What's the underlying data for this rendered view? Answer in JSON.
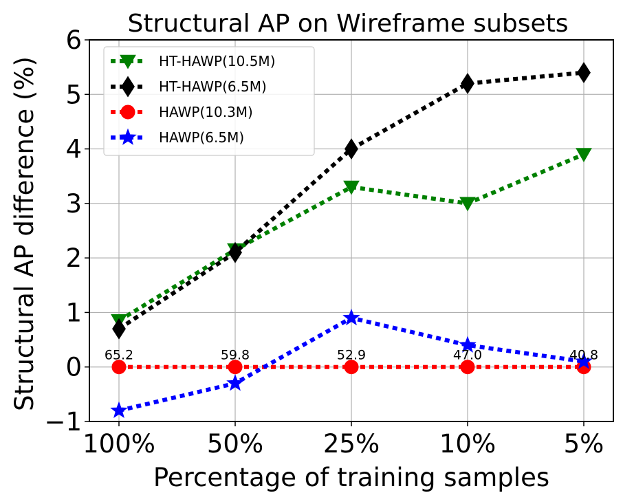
{
  "chart_data": {
    "type": "line",
    "title": "Structural AP on Wireframe subsets",
    "xlabel": "Percentage of training samples",
    "ylabel": "Structural AP difference (%)",
    "categories": [
      "100%",
      "50%",
      "25%",
      "10%",
      "5%"
    ],
    "ylim": [
      -1,
      6
    ],
    "yticks": [
      -1,
      0,
      1,
      2,
      3,
      4,
      5,
      6
    ],
    "ytick_labels": [
      "−1",
      "0",
      "1",
      "2",
      "3",
      "4",
      "5",
      "6"
    ],
    "grid": true,
    "legend_position": "top-left",
    "series": [
      {
        "name": "HT-HAWP(10.5M)",
        "values": [
          0.85,
          2.15,
          3.3,
          3.0,
          3.9
        ],
        "color": "#008000",
        "marker": "triangle-down"
      },
      {
        "name": "HT-HAWP(6.5M)",
        "values": [
          0.7,
          2.1,
          4.0,
          5.2,
          5.4
        ],
        "color": "#000000",
        "marker": "diamond"
      },
      {
        "name": "HAWP(10.3M)",
        "values": [
          0.0,
          0.0,
          0.0,
          0.0,
          0.0
        ],
        "color": "#ff0000",
        "marker": "circle"
      },
      {
        "name": "HAWP(6.5M)",
        "values": [
          -0.8,
          -0.3,
          0.9,
          0.4,
          0.1
        ],
        "color": "#0000ff",
        "marker": "star"
      }
    ],
    "annotations": [
      "65.2",
      "59.8",
      "52.9",
      "47.0",
      "40.8"
    ]
  }
}
